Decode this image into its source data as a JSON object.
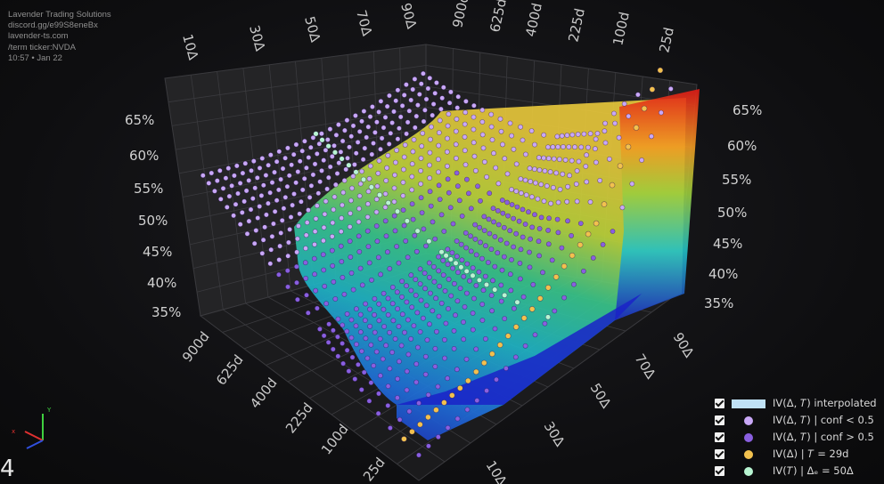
{
  "info": {
    "line1": "Lavender Trading Solutions",
    "line2": "discord.gg/e99S8eneBx",
    "line3": "lavender-ts.com",
    "line4": "/term ticker:NVDA",
    "line5": "10:57 • Jan 22"
  },
  "page_number": "4",
  "axis_gizmo": {
    "y_label": "Y",
    "x_label": "x"
  },
  "colors": {
    "background": "#0e0e10",
    "grid": "#3a3a3e",
    "conf_low": "#c9a8f7",
    "conf_high": "#8a5fe0",
    "fixed_tenor": "#f2c14e",
    "fixed_delta": "#b8f5d2",
    "interpolated": "#bfe1f5"
  },
  "legend": [
    {
      "label": "IV(Δ, 𝑇) interpolated",
      "swatch": "box",
      "color": "#bfe1f5"
    },
    {
      "label": "IV(Δ, 𝑇) | conf < 0.5",
      "swatch": "dot",
      "color": "#c9a8f7"
    },
    {
      "label": "IV(Δ, 𝑇) | conf > 0.5",
      "swatch": "dot",
      "color": "#8a5fe0"
    },
    {
      "label": "IV(Δ) | 𝑇 = 29d",
      "swatch": "dot",
      "color": "#f2c14e"
    },
    {
      "label": "IV(𝑇) | Δₑ = 50Δ",
      "swatch": "dot",
      "color": "#b8f5d2"
    }
  ],
  "chart_data": {
    "type": "surface3d",
    "z_ticks": [
      "35%",
      "40%",
      "45%",
      "50%",
      "55%",
      "60%",
      "65%"
    ],
    "z_range": [
      0.35,
      0.65
    ],
    "delta_ticks_top": [
      "10Δ",
      "30Δ",
      "50Δ",
      "70Δ",
      "90Δ"
    ],
    "tenor_ticks_top": [
      "900d",
      "625d",
      "400d",
      "225d",
      "100d",
      "25d"
    ],
    "delta_ticks_bottom": [
      "90Δ",
      "70Δ",
      "50Δ",
      "30Δ",
      "10Δ"
    ],
    "tenor_ticks_bottom": [
      "900d",
      "625d",
      "400d",
      "225d",
      "100d",
      "25d"
    ],
    "delta_range": [
      10,
      90
    ],
    "tenor_range_days": [
      25,
      900
    ],
    "surface_iv": {
      "tenors_days": [
        25,
        100,
        225,
        400,
        625,
        900
      ],
      "deltas": [
        10,
        30,
        50,
        70,
        90
      ],
      "iv": [
        [
          0.38,
          0.4,
          0.44,
          0.5,
          0.66
        ],
        [
          0.42,
          0.43,
          0.45,
          0.49,
          0.57
        ],
        [
          0.46,
          0.46,
          0.47,
          0.5,
          0.55
        ],
        [
          0.49,
          0.49,
          0.5,
          0.52,
          0.56
        ],
        [
          0.52,
          0.52,
          0.53,
          0.55,
          0.58
        ],
        [
          0.55,
          0.55,
          0.56,
          0.58,
          0.61
        ]
      ]
    },
    "grid_visible": true,
    "legend_position": "bottom-right"
  }
}
